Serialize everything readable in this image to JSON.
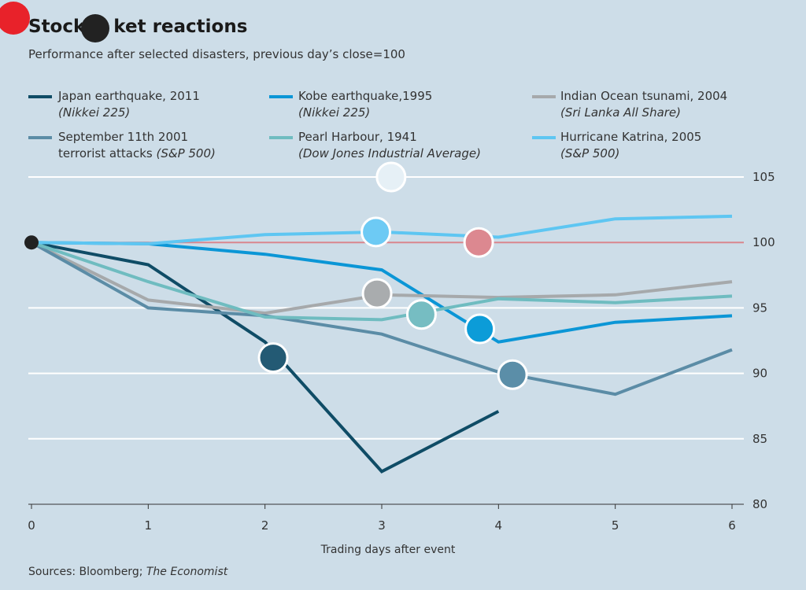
{
  "header": {
    "title_part1": "Stock",
    "title_part2": "ket reactions",
    "subtitle": "Performance after selected disasters, previous day’s close=100"
  },
  "source": {
    "prefix": "Sources: Bloomberg; ",
    "italic": "The Economist"
  },
  "legend": [
    {
      "name": "Japan earthquake, 2011",
      "sub": "(Nikkei 225)",
      "color": "#0f4c66"
    },
    {
      "name": "Kobe earthquake,1995",
      "sub": "(Nikkei 225)",
      "color": "#0b96d6"
    },
    {
      "name": "Indian Ocean tsunami, 2004",
      "sub": "(Sri Lanka All Share)",
      "color": "#a6a9ab"
    },
    {
      "name": "September 11th 2001",
      "sub_plain": "terrorist attacks ",
      "sub": "(S&P 500)",
      "color": "#5b8ca6"
    },
    {
      "name": "Pearl Harbour, 1941",
      "sub": "(Dow Jones Industrial Average)",
      "color": "#6fbcc0"
    },
    {
      "name": "Hurricane Katrina, 2005",
      "sub": "(S&P 500)",
      "color": "#5ec6f2"
    }
  ],
  "chart_data": {
    "type": "line",
    "title": "Stock market reactions",
    "subtitle": "Performance after selected disasters, previous day’s close=100",
    "xlabel": "Trading days after event",
    "ylabel": "",
    "x_ticks": [
      0,
      1,
      2,
      3,
      4,
      5,
      6
    ],
    "y_ticks": [
      80,
      85,
      90,
      95,
      100,
      105
    ],
    "xlim": [
      0,
      6
    ],
    "ylim": [
      80,
      105
    ],
    "grid": true,
    "legend_position": "top",
    "baseline": {
      "value": 100,
      "color": "#d9868e"
    },
    "series": [
      {
        "name": "Japan earthquake, 2011 (Nikkei 225)",
        "color": "#0f4c66",
        "x": [
          0,
          1,
          2,
          3,
          4
        ],
        "y": [
          100,
          98.3,
          92.4,
          82.5,
          87.1
        ]
      },
      {
        "name": "Kobe earthquake, 1995 (Nikkei 225)",
        "color": "#0b96d6",
        "x": [
          0,
          1,
          2,
          3,
          4,
          5,
          6
        ],
        "y": [
          100,
          99.9,
          99.1,
          97.9,
          92.4,
          93.9,
          94.4
        ]
      },
      {
        "name": "Indian Ocean tsunami, 2004 (Sri Lanka All Share)",
        "color": "#a6a9ab",
        "x": [
          0,
          1,
          2,
          3,
          4,
          5,
          6
        ],
        "y": [
          100,
          95.6,
          94.6,
          96.0,
          95.8,
          96.0,
          97.0
        ]
      },
      {
        "name": "September 11th 2001 terrorist attacks (S&P 500)",
        "color": "#5b8ca6",
        "x": [
          0,
          1,
          2,
          3,
          4,
          5,
          6
        ],
        "y": [
          100,
          95.0,
          94.4,
          93.0,
          90.1,
          88.4,
          91.8
        ]
      },
      {
        "name": "Pearl Harbour, 1941 (Dow Jones Industrial Average)",
        "color": "#6fbcc0",
        "x": [
          0,
          1,
          2,
          3,
          4,
          5,
          6
        ],
        "y": [
          100,
          97.0,
          94.3,
          94.1,
          95.7,
          95.4,
          95.9
        ]
      },
      {
        "name": "Hurricane Katrina, 2005 (S&P 500)",
        "color": "#5ec6f2",
        "x": [
          0,
          1,
          2,
          3,
          4,
          5,
          6
        ],
        "y": [
          100,
          99.9,
          100.6,
          100.8,
          100.4,
          101.8,
          102.0
        ]
      }
    ],
    "markers": [
      {
        "x": 0,
        "y": 100,
        "color": "#222222"
      },
      {
        "x": 2.07,
        "y": 91.2,
        "color": "#235a74"
      },
      {
        "x": 3.08,
        "y": 105.0,
        "color": "#e6f0f6"
      },
      {
        "x": 2.95,
        "y": 100.8,
        "color": "#6dcaf4"
      },
      {
        "x": 3.83,
        "y": 100.0,
        "color": "#dc8890"
      },
      {
        "x": 2.96,
        "y": 96.1,
        "color": "#a9acae"
      },
      {
        "x": 3.34,
        "y": 94.5,
        "color": "#76bdc2"
      },
      {
        "x": 3.84,
        "y": 93.4,
        "color": "#0c9cd8"
      },
      {
        "x": 4.12,
        "y": 89.9,
        "color": "#5b8ea8"
      }
    ]
  }
}
